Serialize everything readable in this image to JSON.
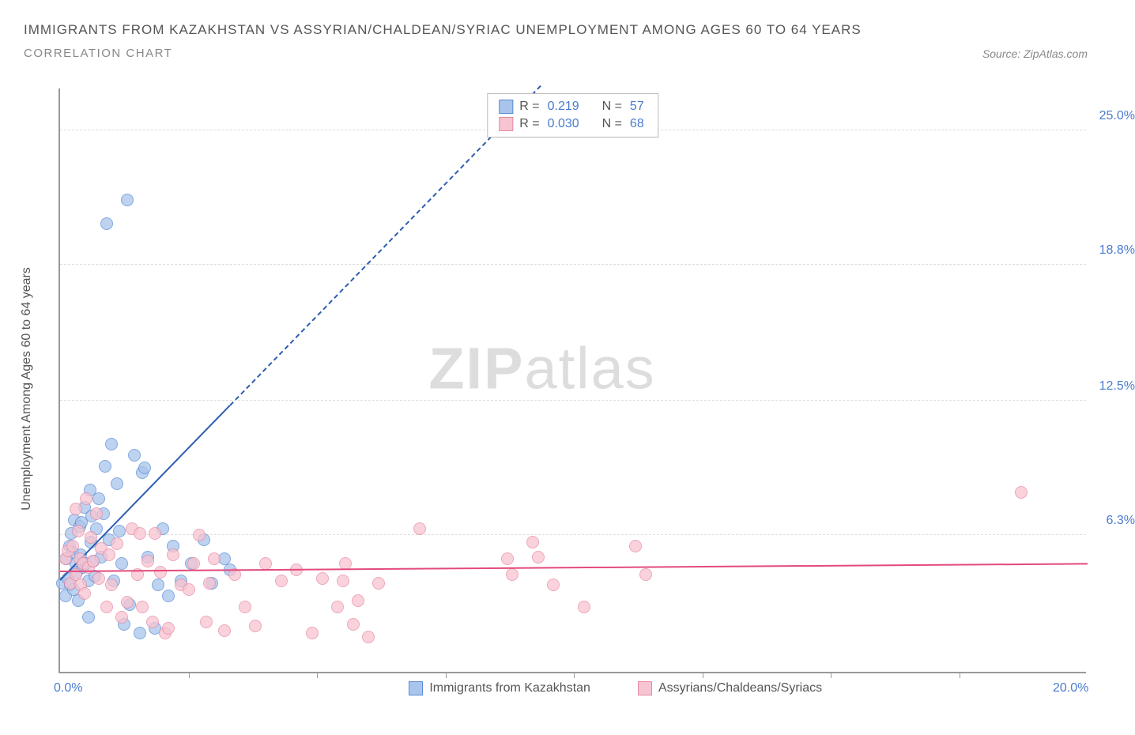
{
  "title": "IMMIGRANTS FROM KAZAKHSTAN VS ASSYRIAN/CHALDEAN/SYRIAC UNEMPLOYMENT AMONG AGES 60 TO 64 YEARS",
  "subtitle": "CORRELATION CHART",
  "source_prefix": "Source: ",
  "source": "ZipAtlas.com",
  "ylabel": "Unemployment Among Ages 60 to 64 years",
  "watermark_bold": "ZIP",
  "watermark_light": "atlas",
  "chart": {
    "xlim": [
      0,
      20
    ],
    "ylim": [
      0,
      27
    ],
    "background_color": "#ffffff",
    "grid_color": "#dddddd",
    "axis_color": "#999999",
    "tick_color": "#4a7bd0",
    "yticks": [
      {
        "y": 6.3,
        "label": "6.3%"
      },
      {
        "y": 12.5,
        "label": "12.5%"
      },
      {
        "y": 18.8,
        "label": "18.8%"
      },
      {
        "y": 25.0,
        "label": "25.0%"
      }
    ],
    "xticks_minor": [
      2.5,
      5.0,
      7.5,
      10.0,
      12.5,
      15.0,
      17.5
    ],
    "xticks_labeled": [
      {
        "x": 0,
        "label": "0.0%"
      },
      {
        "x": 20,
        "label": "20.0%"
      }
    ],
    "series": [
      {
        "key": "blue",
        "name": "Immigrants from Kazakhstan",
        "R": "0.219",
        "N": "57",
        "fill": "#a9c5ec",
        "stroke": "#5a8bd6",
        "trend_color": "#2e5db0",
        "trend": {
          "x1": 0,
          "y1": 4.2,
          "x2": 20,
          "y2": 53,
          "solid_until_x": 3.3
        },
        "points": [
          [
            0.05,
            4.1
          ],
          [
            0.1,
            3.5
          ],
          [
            0.12,
            5.2
          ],
          [
            0.15,
            4.3
          ],
          [
            0.18,
            5.8
          ],
          [
            0.2,
            4.0
          ],
          [
            0.22,
            6.4
          ],
          [
            0.25,
            5.5
          ],
          [
            0.26,
            3.8
          ],
          [
            0.28,
            7.0
          ],
          [
            0.3,
            5.0
          ],
          [
            0.32,
            4.6
          ],
          [
            0.35,
            3.3
          ],
          [
            0.38,
            6.7
          ],
          [
            0.4,
            5.4
          ],
          [
            0.42,
            6.9
          ],
          [
            0.45,
            4.8
          ],
          [
            0.48,
            7.6
          ],
          [
            0.5,
            5.0
          ],
          [
            0.55,
            4.2
          ],
          [
            0.58,
            8.4
          ],
          [
            0.6,
            6.0
          ],
          [
            0.62,
            7.2
          ],
          [
            0.65,
            5.1
          ],
          [
            0.68,
            4.4
          ],
          [
            0.7,
            6.6
          ],
          [
            0.75,
            8.0
          ],
          [
            0.8,
            5.3
          ],
          [
            0.85,
            7.3
          ],
          [
            0.88,
            9.5
          ],
          [
            0.9,
            20.7
          ],
          [
            0.95,
            6.1
          ],
          [
            1.0,
            10.5
          ],
          [
            1.05,
            4.2
          ],
          [
            1.1,
            8.7
          ],
          [
            1.15,
            6.5
          ],
          [
            1.2,
            5.0
          ],
          [
            1.25,
            2.2
          ],
          [
            1.3,
            21.8
          ],
          [
            1.35,
            3.1
          ],
          [
            1.45,
            10.0
          ],
          [
            1.55,
            1.8
          ],
          [
            1.6,
            9.2
          ],
          [
            1.65,
            9.4
          ],
          [
            1.7,
            5.3
          ],
          [
            1.85,
            2.0
          ],
          [
            1.9,
            4.0
          ],
          [
            2.0,
            6.6
          ],
          [
            2.1,
            3.5
          ],
          [
            2.2,
            5.8
          ],
          [
            2.35,
            4.2
          ],
          [
            2.55,
            5.0
          ],
          [
            2.8,
            6.1
          ],
          [
            2.95,
            4.1
          ],
          [
            3.2,
            5.2
          ],
          [
            3.3,
            4.7
          ],
          [
            0.55,
            2.5
          ]
        ]
      },
      {
        "key": "pink",
        "name": "Assyrians/Chaldeans/Syriacs",
        "R": "0.030",
        "N": "68",
        "fill": "#f7c4d1",
        "stroke": "#e88aa5",
        "trend_color": "#e34a7a",
        "trend": {
          "x1": 0,
          "y1": 4.6,
          "x2": 20,
          "y2": 4.95,
          "solid_until_x": 20
        },
        "points": [
          [
            0.1,
            5.2
          ],
          [
            0.15,
            5.6
          ],
          [
            0.2,
            4.1
          ],
          [
            0.25,
            5.8
          ],
          [
            0.3,
            4.5
          ],
          [
            0.35,
            6.5
          ],
          [
            0.38,
            5.2
          ],
          [
            0.4,
            4.0
          ],
          [
            0.45,
            5.0
          ],
          [
            0.48,
            3.6
          ],
          [
            0.5,
            8.0
          ],
          [
            0.55,
            4.8
          ],
          [
            0.6,
            6.2
          ],
          [
            0.65,
            5.1
          ],
          [
            0.7,
            7.3
          ],
          [
            0.75,
            4.3
          ],
          [
            0.8,
            5.7
          ],
          [
            0.9,
            3.0
          ],
          [
            0.95,
            5.4
          ],
          [
            1.0,
            4.0
          ],
          [
            1.1,
            5.9
          ],
          [
            1.2,
            2.5
          ],
          [
            1.3,
            3.2
          ],
          [
            1.4,
            6.6
          ],
          [
            1.5,
            4.5
          ],
          [
            1.55,
            6.4
          ],
          [
            1.6,
            3.0
          ],
          [
            1.7,
            5.1
          ],
          [
            1.8,
            2.3
          ],
          [
            1.85,
            6.4
          ],
          [
            1.95,
            4.6
          ],
          [
            2.05,
            1.8
          ],
          [
            2.1,
            2.0
          ],
          [
            2.2,
            5.4
          ],
          [
            2.35,
            4.0
          ],
          [
            2.5,
            3.8
          ],
          [
            2.6,
            5.0
          ],
          [
            2.7,
            6.3
          ],
          [
            2.85,
            2.3
          ],
          [
            2.9,
            4.1
          ],
          [
            3.0,
            5.2
          ],
          [
            3.2,
            1.9
          ],
          [
            3.4,
            4.5
          ],
          [
            3.6,
            3.0
          ],
          [
            3.8,
            2.1
          ],
          [
            4.0,
            5.0
          ],
          [
            4.3,
            4.2
          ],
          [
            4.6,
            4.7
          ],
          [
            4.9,
            1.8
          ],
          [
            5.1,
            4.3
          ],
          [
            5.4,
            3.0
          ],
          [
            5.5,
            4.2
          ],
          [
            5.55,
            5.0
          ],
          [
            5.7,
            2.2
          ],
          [
            5.8,
            3.3
          ],
          [
            6.0,
            1.6
          ],
          [
            6.2,
            4.1
          ],
          [
            7.0,
            6.6
          ],
          [
            8.7,
            5.2
          ],
          [
            8.8,
            4.5
          ],
          [
            9.2,
            6.0
          ],
          [
            9.3,
            5.3
          ],
          [
            9.6,
            4.0
          ],
          [
            10.2,
            3.0
          ],
          [
            11.2,
            5.8
          ],
          [
            11.4,
            4.5
          ],
          [
            18.7,
            8.3
          ],
          [
            0.3,
            7.5
          ]
        ]
      }
    ]
  },
  "legend": {
    "r_label": "R =",
    "n_label": "N ="
  }
}
